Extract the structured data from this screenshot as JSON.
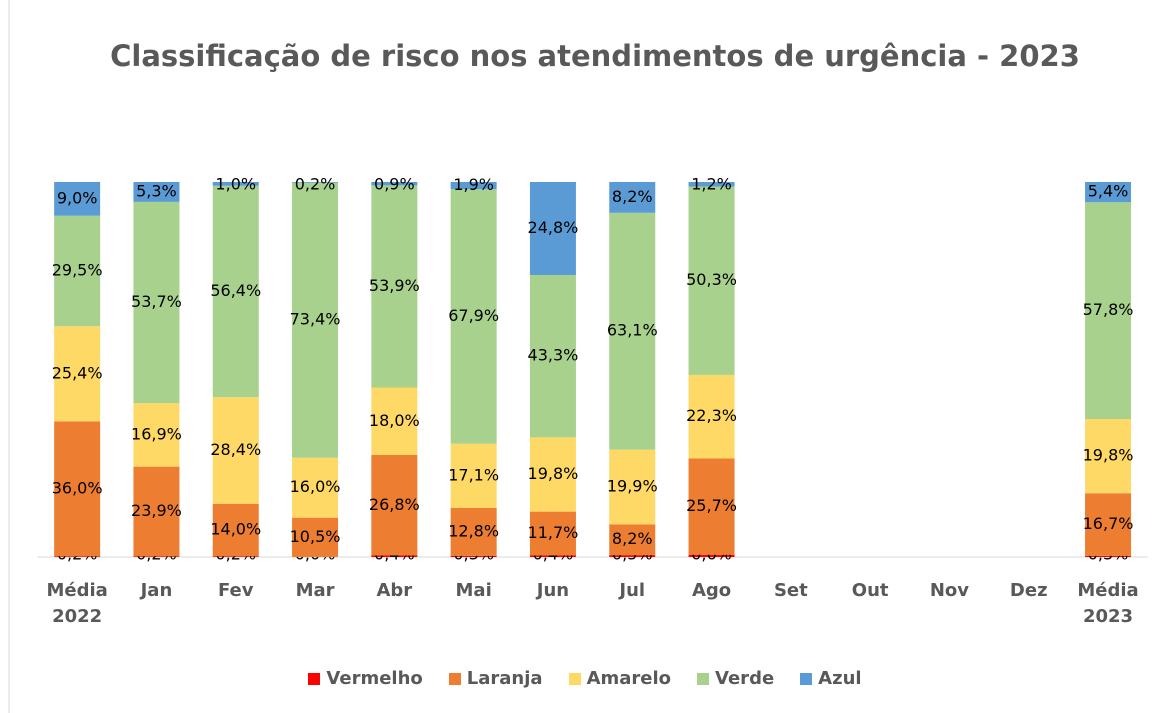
{
  "chart_data": {
    "type": "stacked_bar_100",
    "title": "Classificação de risco nos atendimentos de urgência - 2023",
    "categories": [
      "Média 2022",
      "Jan",
      "Fev",
      "Mar",
      "Abr",
      "Mai",
      "Jun",
      "Jul",
      "Ago",
      "Set",
      "Out",
      "Nov",
      "Dez",
      "Média 2023"
    ],
    "series": [
      {
        "name": "Vermelho",
        "color": "#ff0000",
        "values": [
          0.2,
          0.2,
          0.2,
          0.0,
          0.4,
          0.3,
          0.4,
          0.5,
          0.6,
          null,
          null,
          null,
          null,
          0.3
        ],
        "value_labels": [
          "0,2%",
          "0,2%",
          "0,2%",
          "0,0%",
          "0,4%",
          "0,3%",
          "0,4%",
          "0,5%",
          "0,6%",
          null,
          null,
          null,
          null,
          "0,3%"
        ]
      },
      {
        "name": "Laranja",
        "color": "#ed7d31",
        "values": [
          36.0,
          23.9,
          14.0,
          10.5,
          26.8,
          12.8,
          11.7,
          8.2,
          25.7,
          null,
          null,
          null,
          null,
          16.7
        ],
        "value_labels": [
          "36,0%",
          "23,9%",
          "14,0%",
          "10,5%",
          "26,8%",
          "12,8%",
          "11,7%",
          "8,2%",
          "25,7%",
          null,
          null,
          null,
          null,
          "16,7%"
        ]
      },
      {
        "name": "Amarelo",
        "color": "#ffd966",
        "values": [
          25.4,
          16.9,
          28.4,
          16.0,
          18.0,
          17.1,
          19.8,
          19.9,
          22.3,
          null,
          null,
          null,
          null,
          19.8
        ],
        "value_labels": [
          "25,4%",
          "16,9%",
          "28,4%",
          "16,0%",
          "18,0%",
          "17,1%",
          "19,8%",
          "19,9%",
          "22,3%",
          null,
          null,
          null,
          null,
          "19,8%"
        ]
      },
      {
        "name": "Verde",
        "color": "#a9d18e",
        "values": [
          29.5,
          53.7,
          56.4,
          73.4,
          53.9,
          67.9,
          43.3,
          63.1,
          50.3,
          null,
          null,
          null,
          null,
          57.8
        ],
        "value_labels": [
          "29,5%",
          "53,7%",
          "56,4%",
          "73,4%",
          "53,9%",
          "67,9%",
          "43,3%",
          "63,1%",
          "50,3%",
          null,
          null,
          null,
          null,
          "57,8%"
        ]
      },
      {
        "name": "Azul",
        "color": "#5b9bd5",
        "values": [
          9.0,
          5.3,
          1.0,
          0.2,
          0.9,
          1.9,
          24.8,
          8.2,
          1.2,
          null,
          null,
          null,
          null,
          5.4
        ],
        "value_labels": [
          "9,0%",
          "5,3%",
          "1,0%",
          "0,2%",
          "0,9%",
          "1,9%",
          "24,8%",
          "8,2%",
          "1,2%",
          null,
          null,
          null,
          null,
          "5,4%"
        ]
      }
    ]
  }
}
